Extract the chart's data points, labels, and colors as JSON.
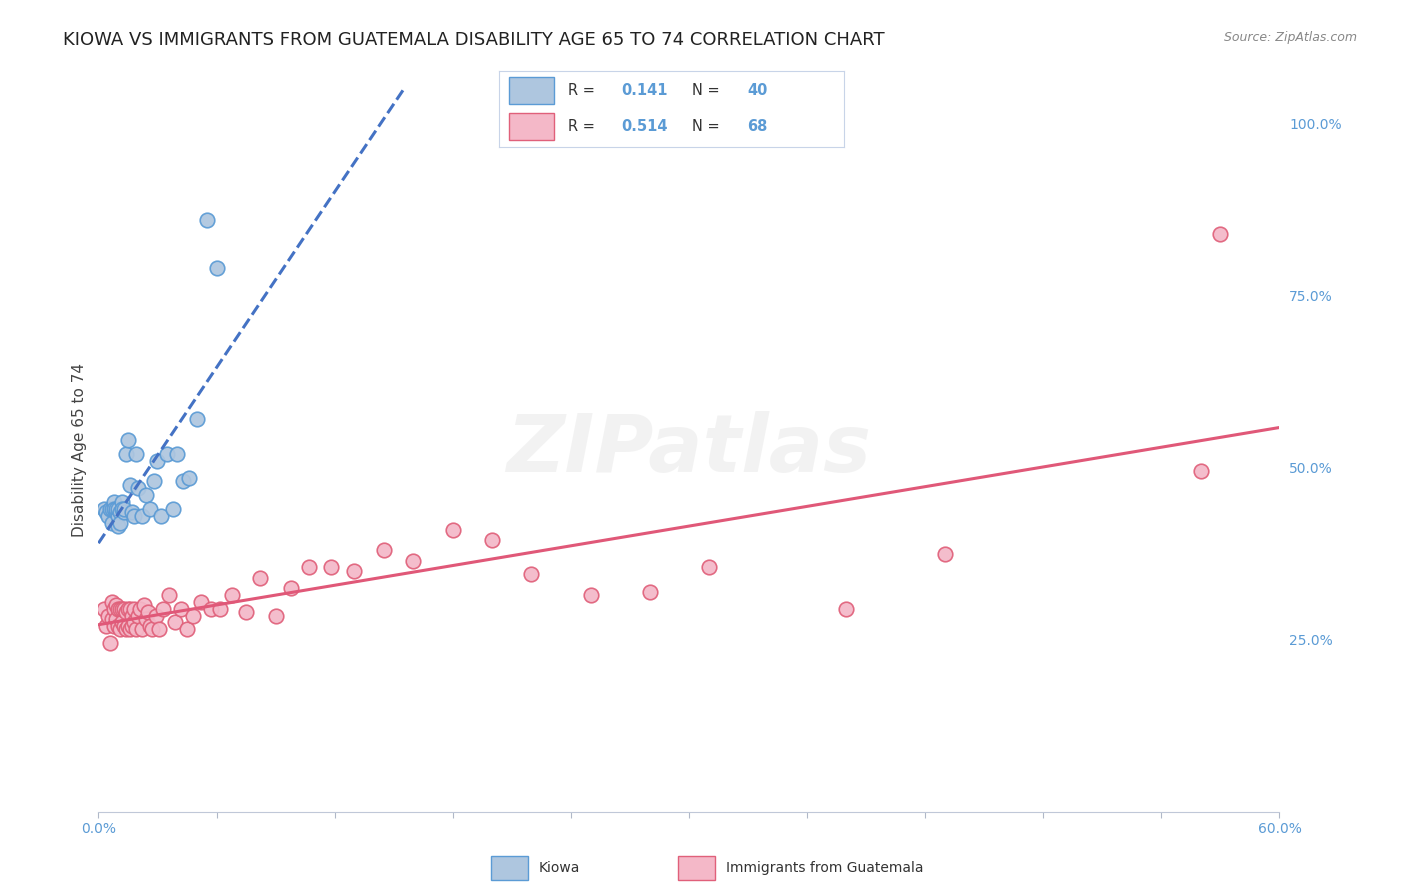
{
  "title": "KIOWA VS IMMIGRANTS FROM GUATEMALA DISABILITY AGE 65 TO 74 CORRELATION CHART",
  "source_text": "Source: ZipAtlas.com",
  "ylabel": "Disability Age 65 to 74",
  "xlim": [
    0.0,
    0.6
  ],
  "ylim": [
    0.0,
    1.05
  ],
  "xtick_positions": [
    0.0,
    0.06,
    0.12,
    0.18,
    0.24,
    0.3,
    0.36,
    0.42,
    0.48,
    0.54,
    0.6
  ],
  "yticks_right": [
    0.25,
    0.5,
    0.75,
    1.0
  ],
  "ytick_right_labels": [
    "25.0%",
    "50.0%",
    "75.0%",
    "100.0%"
  ],
  "kiowa_color": "#aec6df",
  "kiowa_edge_color": "#5b9bd5",
  "guatemala_color": "#f4b8c8",
  "guatemala_edge_color": "#e0607a",
  "trend_kiowa_color": "#4472c4",
  "trend_guatemala_color": "#e05878",
  "R_kiowa": 0.141,
  "N_kiowa": 40,
  "R_guatemala": 0.514,
  "N_guatemala": 68,
  "background_color": "#ffffff",
  "grid_color": "#d0d8e8",
  "watermark": "ZIPatlas",
  "title_fontsize": 13,
  "axis_label_fontsize": 11,
  "tick_fontsize": 10,
  "legend_color": "#5b9bd5",
  "kiowa_x": [
    0.003,
    0.004,
    0.005,
    0.006,
    0.007,
    0.007,
    0.008,
    0.008,
    0.009,
    0.009,
    0.01,
    0.01,
    0.01,
    0.011,
    0.011,
    0.012,
    0.012,
    0.013,
    0.013,
    0.014,
    0.015,
    0.016,
    0.017,
    0.018,
    0.019,
    0.02,
    0.022,
    0.024,
    0.026,
    0.028,
    0.03,
    0.032,
    0.035,
    0.038,
    0.04,
    0.043,
    0.046,
    0.05,
    0.055,
    0.06
  ],
  "kiowa_y": [
    0.44,
    0.435,
    0.43,
    0.44,
    0.44,
    0.42,
    0.45,
    0.44,
    0.435,
    0.44,
    0.43,
    0.415,
    0.44,
    0.435,
    0.42,
    0.45,
    0.44,
    0.435,
    0.44,
    0.52,
    0.54,
    0.475,
    0.435,
    0.43,
    0.52,
    0.47,
    0.43,
    0.46,
    0.44,
    0.48,
    0.51,
    0.43,
    0.52,
    0.44,
    0.52,
    0.48,
    0.485,
    0.57,
    0.86,
    0.79
  ],
  "guatemala_x": [
    0.003,
    0.004,
    0.005,
    0.006,
    0.007,
    0.007,
    0.008,
    0.008,
    0.009,
    0.009,
    0.01,
    0.01,
    0.011,
    0.011,
    0.012,
    0.012,
    0.013,
    0.013,
    0.014,
    0.014,
    0.015,
    0.015,
    0.016,
    0.016,
    0.017,
    0.017,
    0.018,
    0.018,
    0.019,
    0.02,
    0.021,
    0.022,
    0.023,
    0.024,
    0.025,
    0.026,
    0.027,
    0.029,
    0.031,
    0.033,
    0.036,
    0.039,
    0.042,
    0.045,
    0.048,
    0.052,
    0.057,
    0.062,
    0.068,
    0.075,
    0.082,
    0.09,
    0.098,
    0.107,
    0.118,
    0.13,
    0.145,
    0.16,
    0.18,
    0.2,
    0.22,
    0.25,
    0.28,
    0.31,
    0.38,
    0.43,
    0.56,
    0.57
  ],
  "guatemala_y": [
    0.295,
    0.27,
    0.285,
    0.245,
    0.28,
    0.305,
    0.27,
    0.295,
    0.28,
    0.3,
    0.27,
    0.295,
    0.265,
    0.295,
    0.275,
    0.295,
    0.27,
    0.295,
    0.265,
    0.29,
    0.27,
    0.295,
    0.265,
    0.295,
    0.27,
    0.285,
    0.275,
    0.295,
    0.265,
    0.285,
    0.295,
    0.265,
    0.3,
    0.28,
    0.29,
    0.27,
    0.265,
    0.285,
    0.265,
    0.295,
    0.315,
    0.275,
    0.295,
    0.265,
    0.285,
    0.305,
    0.295,
    0.295,
    0.315,
    0.29,
    0.34,
    0.285,
    0.325,
    0.355,
    0.355,
    0.35,
    0.38,
    0.365,
    0.41,
    0.395,
    0.345,
    0.315,
    0.32,
    0.355,
    0.295,
    0.375,
    0.495,
    0.84
  ]
}
